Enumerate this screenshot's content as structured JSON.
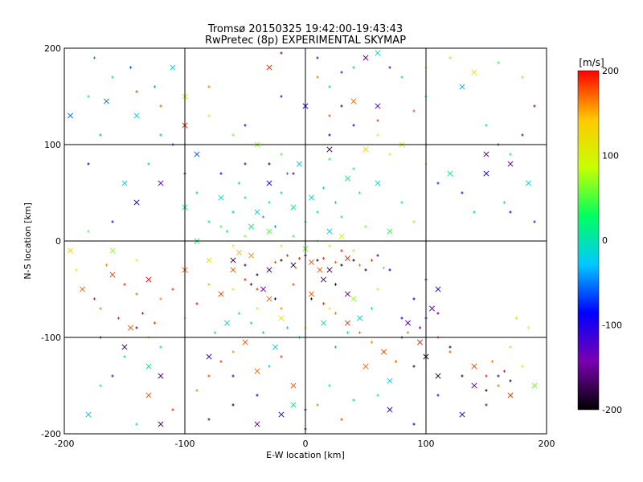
{
  "chart_data": {
    "type": "scatter",
    "title": "Tromsø 20150325 19:42:00-19:43:43",
    "subtitle": "RwPretec (8p) EXPERIMENTAL SKYMAP",
    "xlabel": "E-W location [km]",
    "ylabel": "N-S location [km]",
    "xlim": [
      -200,
      200
    ],
    "ylim": [
      -200,
      200
    ],
    "xticks": [
      -200,
      -100,
      0,
      100,
      200
    ],
    "yticks": [
      -200,
      -100,
      0,
      100,
      200
    ],
    "grid": true,
    "colorbar": {
      "label": "[m/s]",
      "min": -200,
      "max": 200,
      "ticks": [
        200,
        100,
        0,
        -100,
        -200
      ],
      "colors": [
        "#000000",
        "#7a00b0",
        "#0000ff",
        "#00c8ff",
        "#00ff60",
        "#c8ff00",
        "#ffc800",
        "#ff0000"
      ]
    },
    "markers": [
      "+",
      "x"
    ],
    "points": [
      [
        -160,
        -35,
        180
      ],
      [
        -150,
        -45,
        190
      ],
      [
        -140,
        -55,
        170
      ],
      [
        -130,
        -40,
        200
      ],
      [
        -120,
        -60,
        160
      ],
      [
        -110,
        -50,
        185
      ],
      [
        -100,
        -30,
        175
      ],
      [
        -90,
        -65,
        195
      ],
      [
        -80,
        -45,
        150
      ],
      [
        -70,
        -55,
        180
      ],
      [
        -170,
        -70,
        165
      ],
      [
        -155,
        -80,
        190
      ],
      [
        -145,
        -90,
        175
      ],
      [
        -135,
        -75,
        200
      ],
      [
        -125,
        -85,
        185
      ],
      [
        -185,
        -50,
        170
      ],
      [
        -175,
        -60,
        195
      ],
      [
        -165,
        -25,
        160
      ],
      [
        -60,
        -30,
        175
      ],
      [
        -50,
        -40,
        190
      ],
      [
        -40,
        -50,
        185
      ],
      [
        -30,
        -60,
        170
      ],
      [
        -20,
        -70,
        160
      ],
      [
        -10,
        -45,
        180
      ],
      [
        5,
        -55,
        175
      ],
      [
        15,
        -65,
        190
      ],
      [
        25,
        -75,
        165
      ],
      [
        35,
        -85,
        185
      ],
      [
        45,
        -95,
        170
      ],
      [
        55,
        -105,
        160
      ],
      [
        65,
        -115,
        180
      ],
      [
        75,
        -125,
        175
      ],
      [
        85,
        -95,
        165
      ],
      [
        95,
        -105,
        190
      ],
      [
        110,
        -100,
        185
      ],
      [
        120,
        -115,
        175
      ],
      [
        140,
        -130,
        180
      ],
      [
        150,
        -140,
        190
      ],
      [
        160,
        -150,
        170
      ],
      [
        170,
        -160,
        185
      ],
      [
        155,
        -125,
        165
      ],
      [
        165,
        -135,
        195
      ],
      [
        -50,
        -105,
        175
      ],
      [
        -60,
        -115,
        160
      ],
      [
        -70,
        -125,
        185
      ],
      [
        -40,
        -135,
        170
      ],
      [
        -80,
        -140,
        180
      ],
      [
        -90,
        -155,
        165
      ],
      [
        -130,
        -160,
        175
      ],
      [
        -110,
        -175,
        190
      ],
      [
        -20,
        -120,
        185
      ],
      [
        -10,
        -150,
        175
      ],
      [
        10,
        -170,
        165
      ],
      [
        30,
        -185,
        180
      ],
      [
        50,
        -130,
        170
      ],
      [
        -140,
        155,
        185
      ],
      [
        -120,
        140,
        175
      ],
      [
        -100,
        120,
        190
      ],
      [
        -80,
        160,
        165
      ],
      [
        20,
        130,
        180
      ],
      [
        40,
        145,
        170
      ],
      [
        60,
        125,
        185
      ],
      [
        90,
        135,
        175
      ],
      [
        -30,
        180,
        190
      ],
      [
        10,
        170,
        165
      ],
      [
        -30,
        40,
        -10
      ],
      [
        -40,
        30,
        -20
      ],
      [
        -50,
        45,
        5
      ],
      [
        -20,
        50,
        -15
      ],
      [
        -10,
        35,
        10
      ],
      [
        0,
        20,
        -5
      ],
      [
        10,
        30,
        15
      ],
      [
        20,
        10,
        -25
      ],
      [
        30,
        25,
        20
      ],
      [
        -60,
        30,
        -30
      ],
      [
        -70,
        45,
        -10
      ],
      [
        -80,
        20,
        0
      ],
      [
        -90,
        50,
        -20
      ],
      [
        -100,
        35,
        15
      ],
      [
        -25,
        15,
        -40
      ],
      [
        -35,
        25,
        -35
      ],
      [
        -45,
        15,
        25
      ],
      [
        -55,
        60,
        -15
      ],
      [
        -65,
        10,
        5
      ],
      [
        5,
        45,
        -10
      ],
      [
        15,
        55,
        10
      ],
      [
        25,
        40,
        -20
      ],
      [
        35,
        65,
        30
      ],
      [
        45,
        50,
        20
      ],
      [
        -15,
        70,
        -45
      ],
      [
        -5,
        80,
        -25
      ],
      [
        20,
        85,
        35
      ],
      [
        40,
        75,
        15
      ],
      [
        60,
        60,
        -5
      ],
      [
        80,
        40,
        10
      ],
      [
        -130,
        80,
        -30
      ],
      [
        -150,
        60,
        -25
      ],
      [
        -170,
        110,
        -40
      ],
      [
        -120,
        110,
        -35
      ],
      [
        -140,
        130,
        -20
      ],
      [
        -180,
        150,
        0
      ],
      [
        -160,
        170,
        10
      ],
      [
        -110,
        180,
        -15
      ],
      [
        20,
        160,
        -30
      ],
      [
        40,
        180,
        -20
      ],
      [
        60,
        195,
        -10
      ],
      [
        80,
        170,
        0
      ],
      [
        100,
        150,
        15
      ],
      [
        130,
        160,
        -35
      ],
      [
        150,
        120,
        -25
      ],
      [
        170,
        90,
        20
      ],
      [
        185,
        60,
        -15
      ],
      [
        165,
        40,
        10
      ],
      [
        140,
        30,
        -30
      ],
      [
        120,
        70,
        5
      ],
      [
        -45,
        -85,
        -20
      ],
      [
        -35,
        -95,
        -30
      ],
      [
        -25,
        -110,
        -10
      ],
      [
        -15,
        -90,
        -25
      ],
      [
        -5,
        -100,
        0
      ],
      [
        15,
        -85,
        5
      ],
      [
        25,
        -110,
        -35
      ],
      [
        35,
        -95,
        10
      ],
      [
        45,
        -80,
        -15
      ],
      [
        55,
        -70,
        15
      ],
      [
        -55,
        -75,
        20
      ],
      [
        -65,
        -85,
        0
      ],
      [
        -75,
        -95,
        -20
      ],
      [
        -30,
        -130,
        -30
      ],
      [
        -10,
        -170,
        10
      ],
      [
        20,
        -150,
        0
      ],
      [
        40,
        -165,
        -15
      ],
      [
        70,
        -145,
        -25
      ],
      [
        60,
        -160,
        25
      ],
      [
        -120,
        -110,
        -10
      ],
      [
        -130,
        -130,
        10
      ],
      [
        -150,
        -120,
        -25
      ],
      [
        -170,
        -150,
        20
      ],
      [
        -180,
        -180,
        -30
      ],
      [
        -140,
        -190,
        0
      ],
      [
        -20,
        -20,
        -190
      ],
      [
        -10,
        -25,
        -180
      ],
      [
        0,
        -15,
        -200
      ],
      [
        10,
        -20,
        -185
      ],
      [
        20,
        -30,
        -175
      ],
      [
        30,
        -25,
        -195
      ],
      [
        40,
        -20,
        -190
      ],
      [
        -30,
        -30,
        -170
      ],
      [
        -40,
        -35,
        -185
      ],
      [
        -50,
        -25,
        -160
      ],
      [
        -60,
        -20,
        -175
      ],
      [
        50,
        -30,
        -180
      ],
      [
        60,
        -15,
        -165
      ],
      [
        -35,
        -50,
        -140
      ],
      [
        -25,
        -60,
        -190
      ],
      [
        5,
        -60,
        -175
      ],
      [
        15,
        -40,
        -160
      ],
      [
        25,
        -45,
        -185
      ],
      [
        -45,
        -45,
        -170
      ],
      [
        35,
        -55,
        -155
      ],
      [
        -15,
        -15,
        190
      ],
      [
        -5,
        -18,
        185
      ],
      [
        5,
        -22,
        175
      ],
      [
        15,
        -18,
        180
      ],
      [
        25,
        -22,
        170
      ],
      [
        35,
        -18,
        190
      ],
      [
        45,
        -25,
        165
      ],
      [
        -25,
        -22,
        175
      ],
      [
        -45,
        -15,
        160
      ],
      [
        55,
        -20,
        185
      ],
      [
        65,
        -28,
        150
      ],
      [
        -55,
        -12,
        145
      ],
      [
        30,
        -10,
        195
      ],
      [
        -8,
        -28,
        155
      ],
      [
        12,
        -30,
        175
      ],
      [
        -130,
        -100,
        150
      ],
      [
        -100,
        -80,
        60
      ],
      [
        -80,
        -20,
        120
      ],
      [
        -60,
        -50,
        90
      ],
      [
        -40,
        -70,
        80
      ],
      [
        -20,
        -80,
        100
      ],
      [
        0,
        -90,
        110
      ],
      [
        20,
        -70,
        90
      ],
      [
        40,
        -60,
        70
      ],
      [
        60,
        -50,
        80
      ],
      [
        -50,
        5,
        60
      ],
      [
        -30,
        10,
        50
      ],
      [
        -10,
        5,
        40
      ],
      [
        10,
        0,
        70
      ],
      [
        30,
        5,
        90
      ],
      [
        -60,
        -5,
        110
      ],
      [
        -20,
        -5,
        80
      ],
      [
        0,
        -8,
        60
      ],
      [
        20,
        -5,
        100
      ],
      [
        40,
        -10,
        75
      ],
      [
        -90,
        0,
        30
      ],
      [
        -70,
        15,
        45
      ],
      [
        50,
        15,
        55
      ],
      [
        70,
        10,
        40
      ],
      [
        90,
        20,
        65
      ],
      [
        -140,
        -20,
        90
      ],
      [
        -160,
        -10,
        70
      ],
      [
        -190,
        -30,
        110
      ],
      [
        -180,
        10,
        50
      ],
      [
        -195,
        -10,
        130
      ],
      [
        170,
        -110,
        140
      ],
      [
        180,
        -130,
        80
      ],
      [
        190,
        -150,
        60
      ],
      [
        185,
        -90,
        100
      ],
      [
        175,
        -80,
        120
      ],
      [
        -165,
        145,
        -50
      ],
      [
        -145,
        180,
        -60
      ],
      [
        -125,
        160,
        -40
      ],
      [
        -195,
        130,
        -55
      ],
      [
        -175,
        190,
        -45
      ],
      [
        60,
        110,
        100
      ],
      [
        80,
        100,
        110
      ],
      [
        100,
        80,
        120
      ],
      [
        70,
        90,
        80
      ],
      [
        50,
        95,
        140
      ],
      [
        100,
        180,
        90
      ],
      [
        120,
        190,
        70
      ],
      [
        140,
        175,
        110
      ],
      [
        160,
        185,
        40
      ],
      [
        180,
        170,
        60
      ],
      [
        -100,
        150,
        80
      ],
      [
        -80,
        130,
        90
      ],
      [
        -60,
        110,
        60
      ],
      [
        -40,
        100,
        70
      ],
      [
        -20,
        90,
        50
      ],
      [
        -110,
        100,
        -80
      ],
      [
        -90,
        90,
        -60
      ],
      [
        -70,
        70,
        -100
      ],
      [
        -50,
        80,
        -120
      ],
      [
        -30,
        60,
        -90
      ],
      [
        110,
        60,
        -70
      ],
      [
        130,
        50,
        -110
      ],
      [
        150,
        70,
        -90
      ],
      [
        170,
        30,
        -80
      ],
      [
        190,
        20,
        -120
      ],
      [
        -140,
        40,
        -95
      ],
      [
        -160,
        20,
        -115
      ],
      [
        -180,
        80,
        -100
      ],
      [
        -120,
        60,
        -130
      ],
      [
        -100,
        70,
        -85
      ],
      [
        -20,
        150,
        -120
      ],
      [
        0,
        140,
        -100
      ],
      [
        20,
        110,
        -90
      ],
      [
        40,
        120,
        -110
      ],
      [
        60,
        140,
        -130
      ],
      [
        90,
        -60,
        -90
      ],
      [
        100,
        -40,
        -120
      ],
      [
        110,
        -50,
        -100
      ],
      [
        80,
        -80,
        -110
      ],
      [
        70,
        -30,
        -95
      ],
      [
        -80,
        -120,
        -100
      ],
      [
        -60,
        -140,
        -120
      ],
      [
        -40,
        -160,
        -90
      ],
      [
        -20,
        -180,
        -110
      ],
      [
        0,
        -195,
        -80
      ],
      [
        150,
        -170,
        -130
      ],
      [
        130,
        -180,
        -100
      ],
      [
        110,
        -160,
        -120
      ],
      [
        90,
        -190,
        -90
      ],
      [
        70,
        -175,
        -110
      ],
      [
        160,
        -140,
        -160
      ],
      [
        170,
        -145,
        -180
      ],
      [
        140,
        -150,
        -150
      ],
      [
        130,
        -140,
        -170
      ],
      [
        150,
        -155,
        -190
      ],
      [
        100,
        -120,
        -195
      ],
      [
        90,
        -130,
        -180
      ],
      [
        80,
        -100,
        -170
      ],
      [
        110,
        -140,
        -185
      ],
      [
        120,
        -110,
        -175
      ],
      [
        -160,
        -140,
        -150
      ],
      [
        -150,
        -110,
        -175
      ],
      [
        -140,
        -90,
        -160
      ],
      [
        -170,
        -100,
        -185
      ],
      [
        -120,
        -140,
        -165
      ],
      [
        -30,
        80,
        -170
      ],
      [
        -10,
        70,
        -160
      ],
      [
        20,
        95,
        -180
      ],
      [
        -50,
        120,
        -155
      ],
      [
        30,
        140,
        -165
      ],
      [
        -120,
        -190,
        -175
      ],
      [
        -80,
        -185,
        -160
      ],
      [
        -60,
        -170,
        -180
      ],
      [
        -40,
        -190,
        -155
      ],
      [
        0,
        -175,
        -170
      ],
      [
        100,
        -80,
        -140
      ],
      [
        105,
        -70,
        -150
      ],
      [
        95,
        -90,
        -145
      ],
      [
        110,
        -75,
        -155
      ],
      [
        85,
        -85,
        -135
      ],
      [
        10,
        190,
        -150
      ],
      [
        30,
        175,
        -140
      ],
      [
        50,
        190,
        -160
      ],
      [
        70,
        180,
        -130
      ],
      [
        -20,
        195,
        -145
      ],
      [
        170,
        80,
        -140
      ],
      [
        160,
        100,
        -150
      ],
      [
        180,
        110,
        -135
      ],
      [
        150,
        90,
        -160
      ],
      [
        190,
        140,
        -145
      ]
    ]
  }
}
